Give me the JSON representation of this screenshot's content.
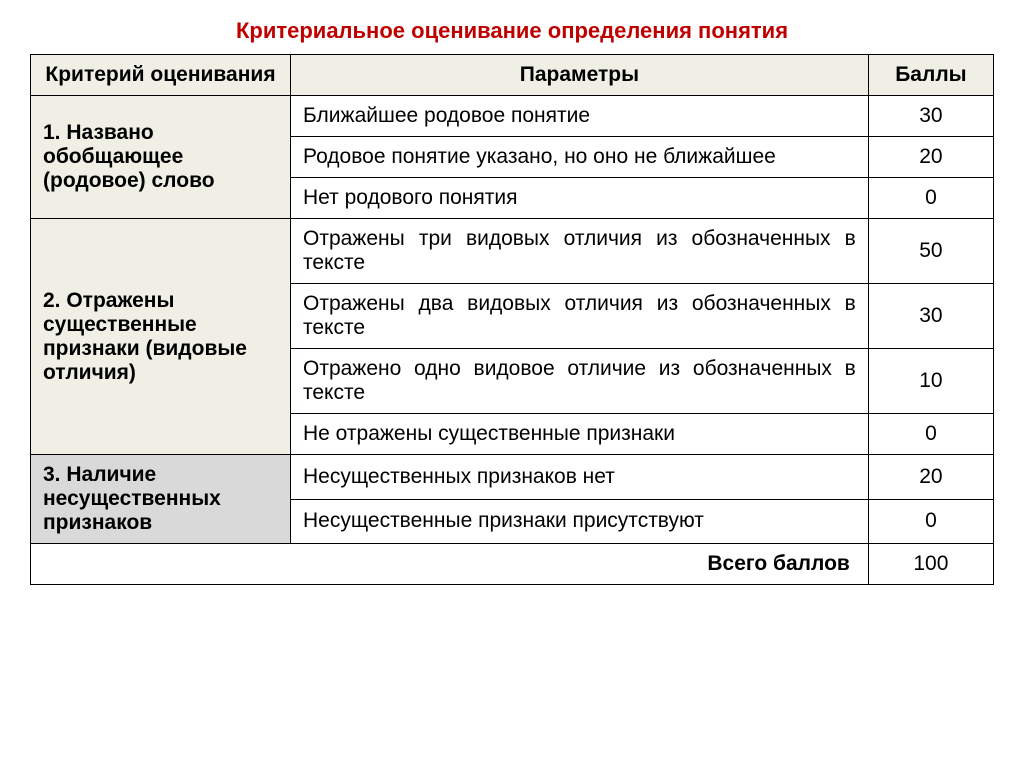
{
  "title": "Критериальное оценивание определения понятия",
  "headers": {
    "col1": "Критерий оценивания",
    "col2": "Параметры",
    "col3": "Баллы"
  },
  "rows": [
    {
      "criterion": "1. Названо обобщающее (родовое) слово",
      "rowspan": 3,
      "crit_bg": "#efefe5",
      "param": "Ближайшее родовое понятие",
      "score": "30"
    },
    {
      "param": "Родовое понятие указано, но оно не ближайшее",
      "score": "20"
    },
    {
      "param": "Нет родового понятия",
      "score": "0"
    },
    {
      "criterion": "2.  Отражены существенные признаки (видовые отличия)",
      "rowspan": 4,
      "crit_bg": "#efefe5",
      "param": "Отражены три видовых отличия из обозначенных в тексте",
      "justify": true,
      "score": "50"
    },
    {
      "param": "Отражены два видовых отличия из обозначенных в тексте",
      "justify": true,
      "score": "30"
    },
    {
      "param": "Отражено одно видовое отличие из обозначенных в тексте",
      "justify": true,
      "score": "10"
    },
    {
      "param": "Не отражены существенные признаки",
      "justify": true,
      "score": "0"
    },
    {
      "criterion": "3. Наличие несущественных признаков",
      "rowspan": 2,
      "crit_bg": "#d9d9d9",
      "param": "Несущественных признаков нет",
      "score": "20"
    },
    {
      "param": "Несущественные признаки присутствуют",
      "justify": true,
      "score": "0"
    }
  ],
  "total": {
    "label": "Всего баллов",
    "value": "100"
  },
  "colors": {
    "title": "#c00000",
    "header_bg": "#efefe5",
    "alt_bg": "#d9d9d9",
    "border": "#000000"
  }
}
